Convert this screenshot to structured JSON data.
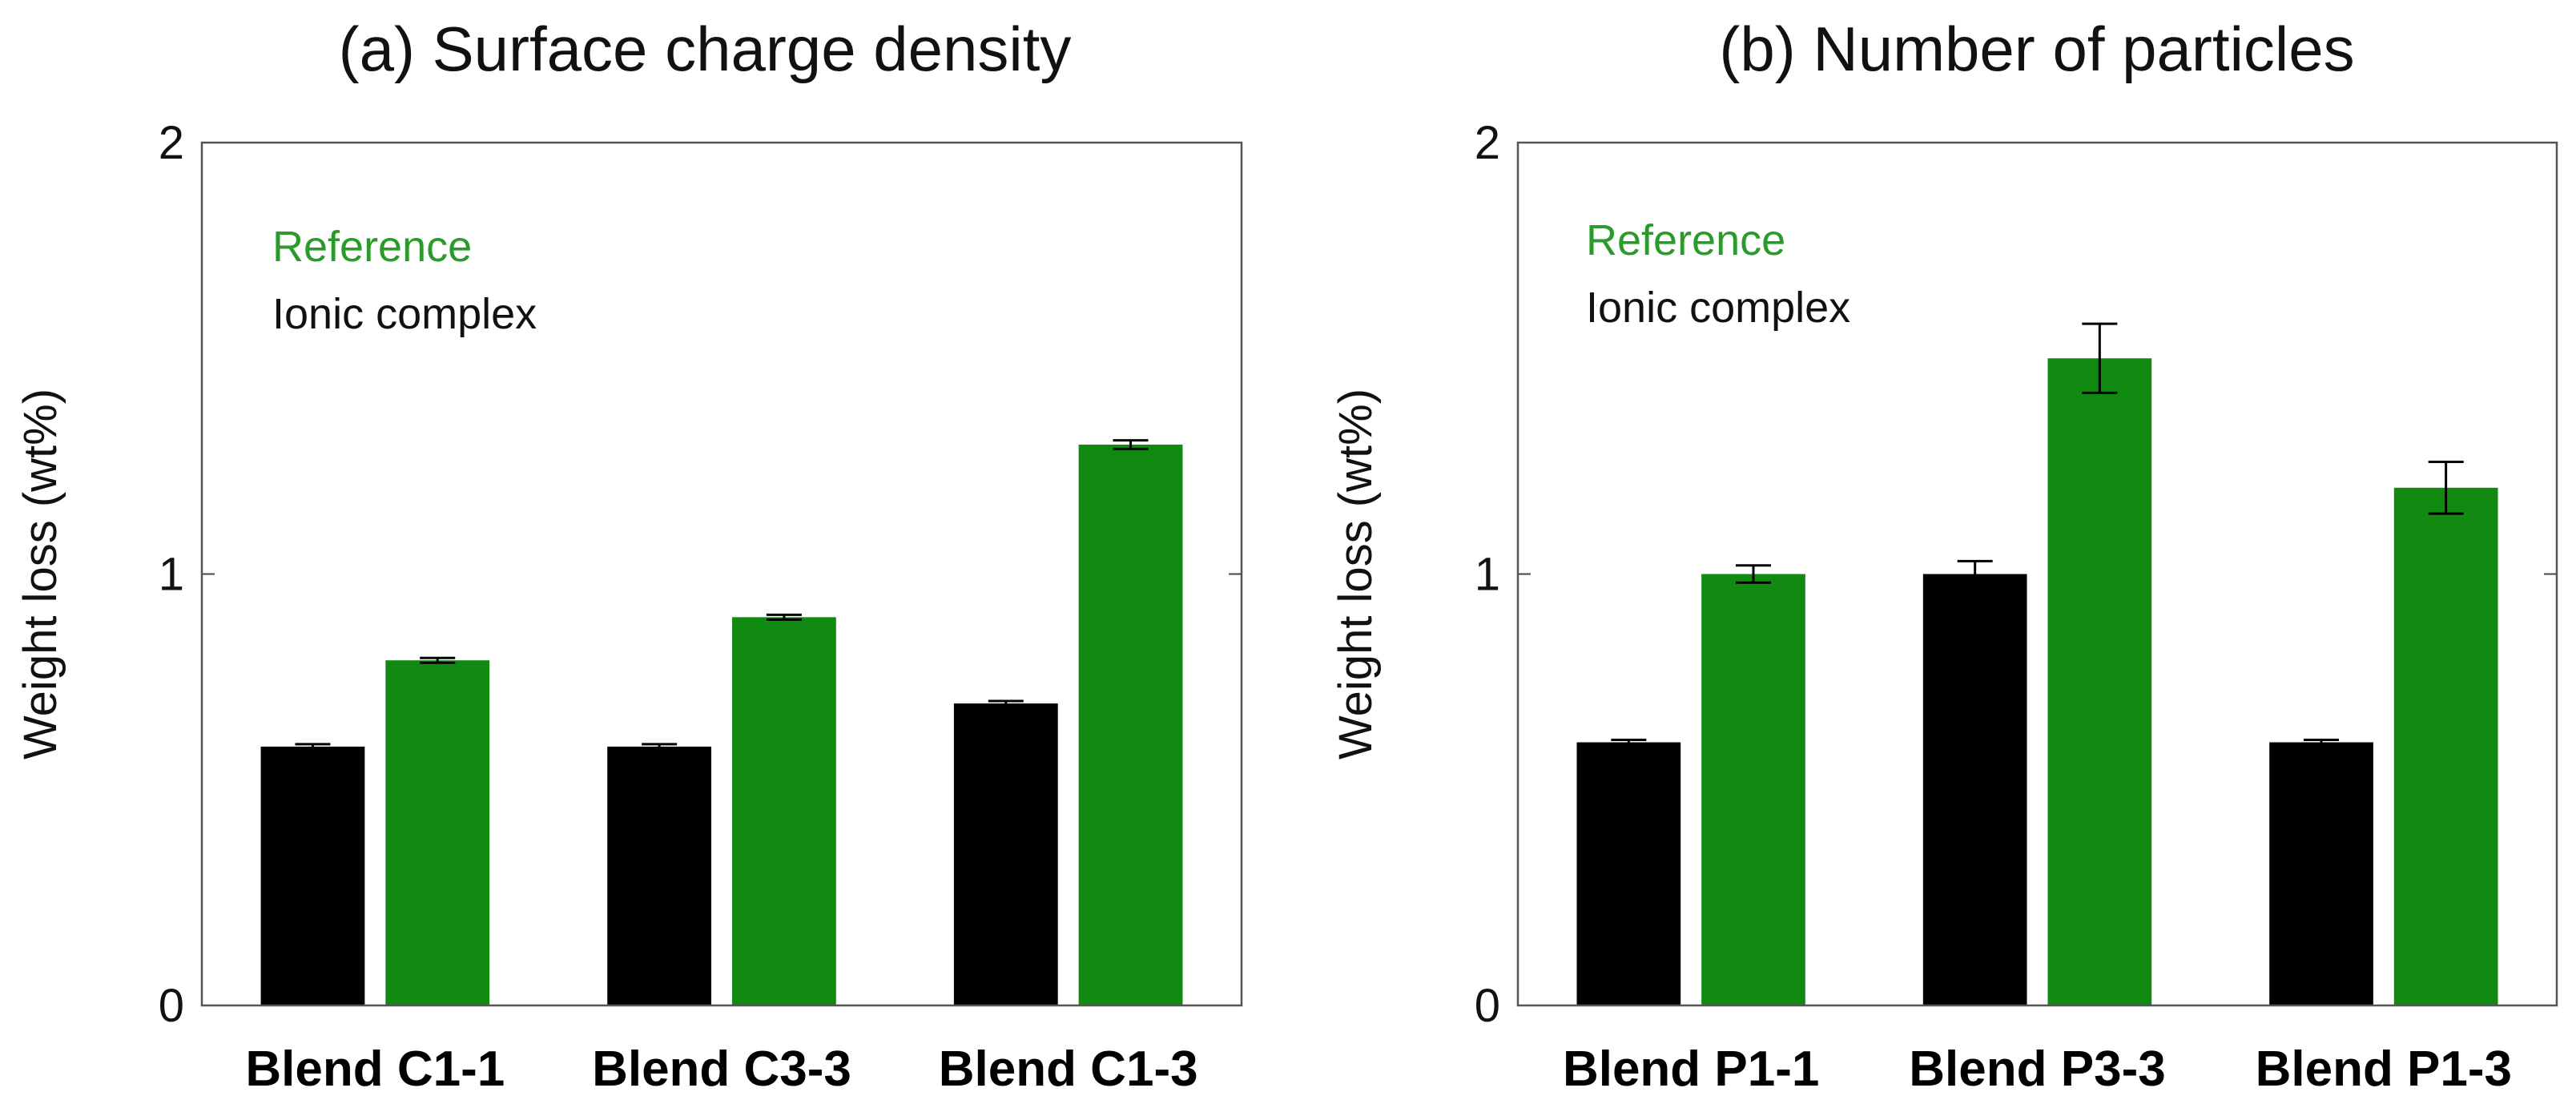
{
  "chart_data": [
    {
      "type": "bar",
      "title": "(a) Surface charge density",
      "xlabel": "",
      "ylabel": "Weight loss (wt%)",
      "ylim": [
        0,
        2
      ],
      "yticks": [
        0,
        1,
        2
      ],
      "categories": [
        "Blend C1-1",
        "Blend C3-3",
        "Blend C1-3"
      ],
      "series": [
        {
          "name": "Ionic complex",
          "color": "#000000",
          "values": [
            0.6,
            0.6,
            0.7
          ],
          "errors": [
            0.005,
            0.005,
            0.005
          ]
        },
        {
          "name": "Reference",
          "color": "#118a11",
          "values": [
            0.8,
            0.9,
            1.3
          ],
          "errors": [
            0.005,
            0.005,
            0.01
          ]
        }
      ],
      "legend": {
        "position": "top-left",
        "entries": [
          {
            "label": "Reference",
            "color": "#2a9a2a"
          },
          {
            "label": "Ionic complex",
            "color": "#111111"
          }
        ]
      }
    },
    {
      "type": "bar",
      "title": "(b) Number of particles",
      "xlabel": "",
      "ylabel": "Weight loss (wt%)",
      "ylim": [
        0,
        2
      ],
      "yticks": [
        0,
        1,
        2
      ],
      "categories": [
        "Blend P1-1",
        "Blend P3-3",
        "Blend P1-3"
      ],
      "series": [
        {
          "name": "Ionic complex",
          "color": "#000000",
          "values": [
            0.61,
            1.0,
            0.61
          ],
          "errors": [
            0.004,
            0.03,
            0.004
          ]
        },
        {
          "name": "Reference",
          "color": "#118a11",
          "values": [
            1.0,
            1.5,
            1.2
          ],
          "errors": [
            0.02,
            0.08,
            0.06
          ]
        }
      ],
      "legend": {
        "position": "top-left",
        "entries": [
          {
            "label": "Reference",
            "color": "#2a9a2a"
          },
          {
            "label": "Ionic complex",
            "color": "#111111"
          }
        ]
      }
    }
  ]
}
